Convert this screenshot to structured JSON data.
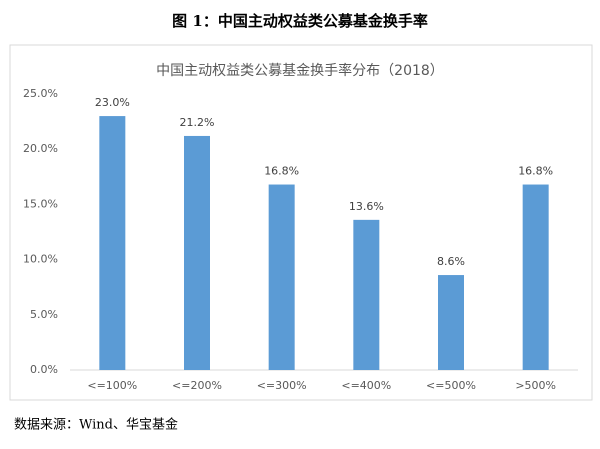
{
  "caption": "图 1：中国主动权益类公募基金换手率",
  "source": "数据来源：Wind、华宝基金",
  "chart_data": {
    "type": "bar",
    "title": "中国主动权益类公募基金换手率分布（2018）",
    "categories": [
      "<=100%",
      "<=200%",
      "<=300%",
      "<=400%",
      "<=500%",
      ">500%"
    ],
    "values": [
      23.0,
      21.2,
      16.8,
      13.6,
      8.6,
      16.8
    ],
    "value_labels": [
      "23.0%",
      "21.2%",
      "16.8%",
      "13.6%",
      "8.6%",
      "16.8%"
    ],
    "color": "#5b9bd5",
    "ylim": [
      0,
      25
    ],
    "yticks": [
      {
        "value": 0,
        "label": "0.0%"
      },
      {
        "value": 5,
        "label": "5.0%"
      },
      {
        "value": 10,
        "label": "10.0%"
      },
      {
        "value": 15,
        "label": "15.0%"
      },
      {
        "value": 20,
        "label": "20.0%"
      },
      {
        "value": 25,
        "label": "25.0%"
      }
    ],
    "grid": false
  }
}
